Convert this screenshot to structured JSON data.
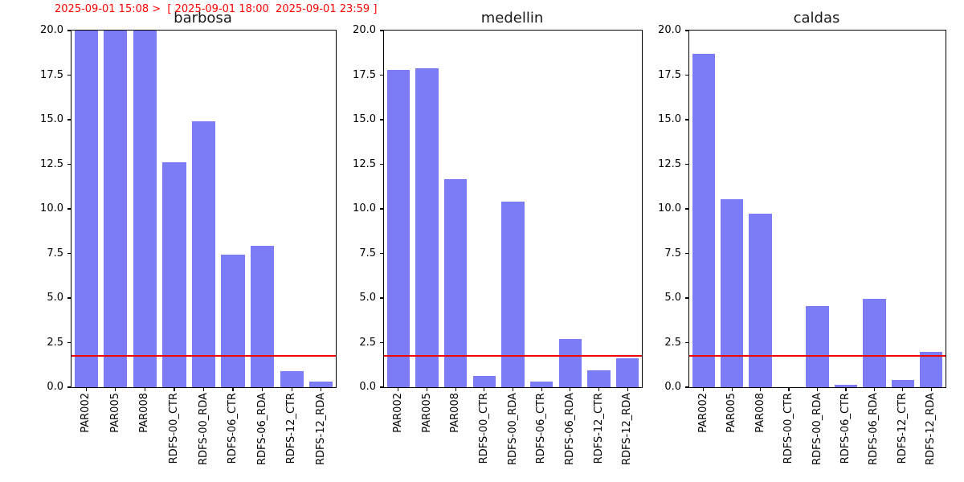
{
  "header": {
    "text": "2025-09-01 15:08 >  [ 2025-09-01 18:00  2025-09-01 23:59 ]",
    "color": "#ff0000"
  },
  "style": {
    "bar_color": "#7c7cf6",
    "threshold_color": "#ee0000",
    "axis_color": "#000000"
  },
  "chart_data": [
    {
      "type": "bar",
      "title": "barbosa",
      "categories": [
        "PAR002",
        "PAR005",
        "PAR008",
        "RDFS-00_CTR",
        "RDFS-00_RDA",
        "RDFS-06_CTR",
        "RDFS-06_RDA",
        "RDFS-12_CTR",
        "RDFS-12_RDA"
      ],
      "values": [
        20.0,
        20.0,
        20.0,
        12.6,
        14.9,
        7.45,
        7.95,
        0.9,
        0.3
      ],
      "ylim": [
        0,
        20
      ],
      "yticks": [
        0.0,
        2.5,
        5.0,
        7.5,
        10.0,
        12.5,
        15.0,
        17.5,
        20.0
      ],
      "threshold_line_y": 1.75,
      "grid": false,
      "legend": null
    },
    {
      "type": "bar",
      "title": "medellin",
      "categories": [
        "PAR002",
        "PAR005",
        "PAR008",
        "RDFS-00_CTR",
        "RDFS-00_RDA",
        "RDFS-06_CTR",
        "RDFS-06_RDA",
        "RDFS-12_CTR",
        "RDFS-12_RDA"
      ],
      "values": [
        17.8,
        17.9,
        11.65,
        0.65,
        10.4,
        0.3,
        2.7,
        0.95,
        1.6
      ],
      "ylim": [
        0,
        20
      ],
      "yticks": [
        0.0,
        2.5,
        5.0,
        7.5,
        10.0,
        12.5,
        15.0,
        17.5,
        20.0
      ],
      "threshold_line_y": 1.75,
      "grid": false,
      "legend": null
    },
    {
      "type": "bar",
      "title": "caldas",
      "categories": [
        "PAR002",
        "PAR005",
        "PAR008",
        "RDFS-00_CTR",
        "RDFS-00_RDA",
        "RDFS-06_CTR",
        "RDFS-06_RDA",
        "RDFS-12_CTR",
        "RDFS-12_RDA"
      ],
      "values": [
        18.7,
        10.55,
        9.75,
        0.0,
        4.55,
        0.15,
        4.95,
        0.4,
        2.0
      ],
      "ylim": [
        0,
        20
      ],
      "yticks": [
        0.0,
        2.5,
        5.0,
        7.5,
        10.0,
        12.5,
        15.0,
        17.5,
        20.0
      ],
      "threshold_line_y": 1.75,
      "grid": false,
      "legend": null
    }
  ]
}
